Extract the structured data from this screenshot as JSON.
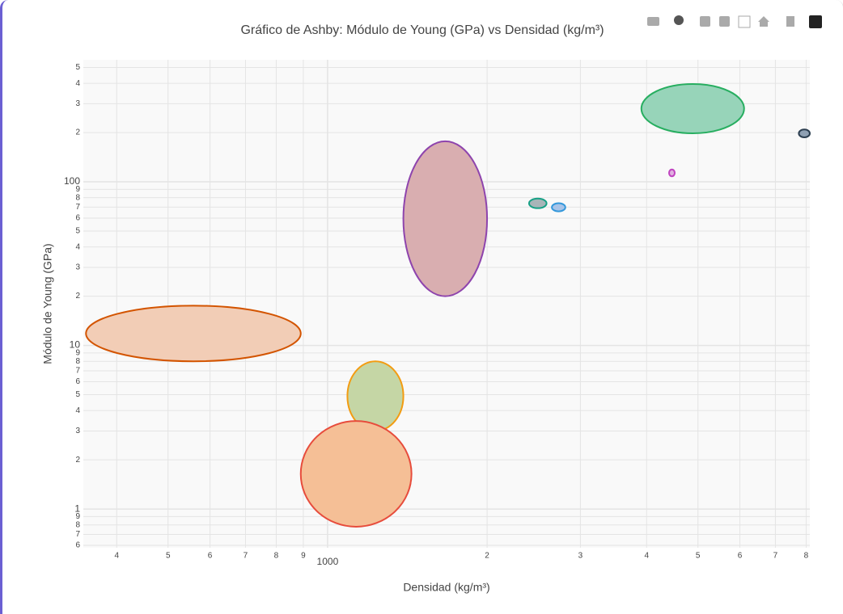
{
  "chart_data": {
    "type": "ellipse",
    "title": "Gráfico de Ashby: Módulo de Young (GPa) vs Densidad (kg/m³)",
    "x_label": "Densidad (kg/m³)",
    "y_label": "Módulo de Young (GPa)",
    "xscale": "log",
    "yscale": "log",
    "grid": true,
    "xlim": [
      346,
      8130
    ],
    "ylim": [
      0.58,
      557
    ],
    "xticks": [
      {
        "value": 400,
        "label": "4"
      },
      {
        "value": 500,
        "label": "5"
      },
      {
        "value": 600,
        "label": "6"
      },
      {
        "value": 700,
        "label": "7"
      },
      {
        "value": 800,
        "label": "8"
      },
      {
        "value": 900,
        "label": "9"
      },
      1000,
      {
        "value": 2000,
        "label": "2"
      },
      {
        "value": 3000,
        "label": "3"
      },
      {
        "value": 4000,
        "label": "4"
      },
      {
        "value": 5000,
        "label": "5"
      },
      {
        "value": 6000,
        "label": "6"
      },
      {
        "value": 7000,
        "label": "7"
      },
      {
        "value": 8000,
        "label": "8"
      }
    ],
    "yticks": [
      {
        "value": 0.6,
        "label": "6"
      },
      {
        "value": 0.7,
        "label": "7"
      },
      {
        "value": 0.8,
        "label": "8"
      },
      {
        "value": 0.9,
        "label": "9"
      },
      1,
      {
        "value": 2,
        "label": "2"
      },
      {
        "value": 3,
        "label": "3"
      },
      {
        "value": 4,
        "label": "4"
      },
      {
        "value": 5,
        "label": "5"
      },
      {
        "value": 6,
        "label": "6"
      },
      {
        "value": 7,
        "label": "7"
      },
      {
        "value": 8,
        "label": "8"
      },
      {
        "value": 9,
        "label": "9"
      },
      10,
      {
        "value": 20,
        "label": "2"
      },
      {
        "value": 30,
        "label": "3"
      },
      {
        "value": 40,
        "label": "4"
      },
      {
        "value": 50,
        "label": "5"
      },
      {
        "value": 60,
        "label": "6"
      },
      {
        "value": 70,
        "label": "7"
      },
      {
        "value": 80,
        "label": "8"
      },
      {
        "value": 90,
        "label": "9"
      },
      100,
      {
        "value": 200,
        "label": "2"
      },
      {
        "value": 300,
        "label": "3"
      },
      {
        "value": 400,
        "label": "4"
      },
      {
        "value": 500,
        "label": "5"
      }
    ],
    "series": [
      {
        "color": "#d35400",
        "fill": "#f2cdb6",
        "xrange": [
          350,
          890
        ],
        "yrange": [
          8,
          17.5
        ]
      },
      {
        "color": "#8e44ad",
        "fill": "#d9aeb0",
        "xrange": [
          1390,
          2000
        ],
        "yrange": [
          20,
          177
        ]
      },
      {
        "color": "#f39c12",
        "fill": "#c5d6a5",
        "xrange": [
          1090,
          1390
        ],
        "yrange": [
          3,
          8
        ]
      },
      {
        "color": "#e74c3c",
        "fill": "#f5bf96",
        "xrange": [
          890,
          1440
        ],
        "yrange": [
          0.78,
          3.45
        ]
      },
      {
        "color": "#16a085",
        "fill": "#a8b5b8",
        "xrange": [
          2400,
          2590
        ],
        "yrange": [
          69,
          79
        ]
      },
      {
        "color": "#3498db",
        "fill": "#a9c4e8",
        "xrange": [
          2650,
          2810
        ],
        "yrange": [
          66,
          74
        ]
      },
      {
        "color": "#c044c0",
        "fill": "#e0b0e0",
        "xrange": [
          4410,
          4520
        ],
        "yrange": [
          108,
          119
        ]
      },
      {
        "color": "#27ae60",
        "fill": "#97d4b9",
        "xrange": [
          3910,
          6110
        ],
        "yrange": [
          198,
          396
        ]
      },
      {
        "color": "#2c3e50",
        "fill": "#8fa0b3",
        "xrange": [
          7750,
          8130
        ],
        "yrange": [
          187,
          209
        ]
      }
    ]
  }
}
